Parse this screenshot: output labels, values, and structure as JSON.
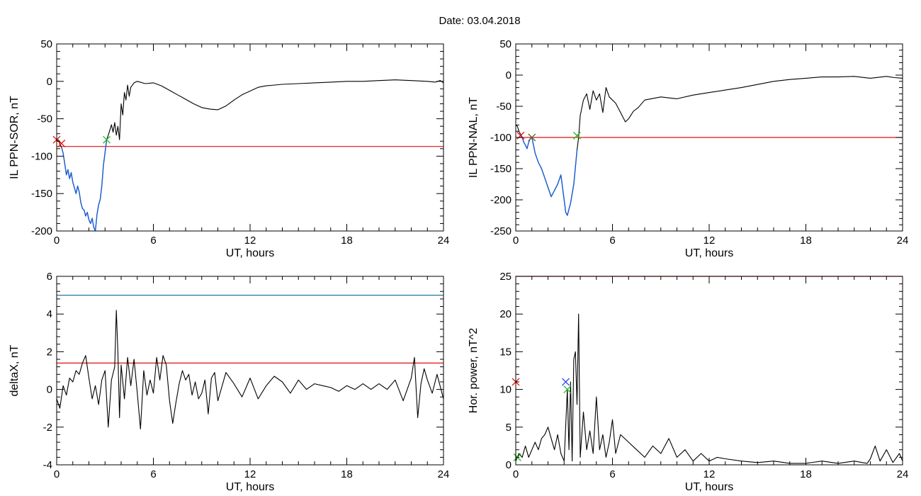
{
  "figure": {
    "title": "Date:  03.04.2018"
  },
  "colors": {
    "signal": "#000000",
    "threshold_red": "#e01010",
    "threshold_teal": "#1f7a9c",
    "segment_blue": "#1a5fd6",
    "marker_green": "#22bb22",
    "marker_red": "#e01010",
    "marker_blue": "#2040ff",
    "marker_olive": "#556b2f"
  },
  "chart_data": [
    {
      "id": "sor",
      "type": "line",
      "xlabel": "UT, hours",
      "ylabel": "IL PPN-SOR, nT",
      "xlim": [
        0,
        24
      ],
      "ylim": [
        -200,
        50
      ],
      "xticks": [
        0,
        6,
        12,
        18,
        24
      ],
      "yticks": [
        50,
        0,
        -50,
        -100,
        -150,
        -200
      ],
      "threshold": {
        "y": -87,
        "color": "red"
      },
      "highlight": {
        "x_start": 0.3,
        "x_end": 3.1,
        "color": "blue"
      },
      "markers": [
        {
          "x": 0.0,
          "y": -78,
          "color": "red"
        },
        {
          "x": 0.3,
          "y": -83,
          "color": "red"
        },
        {
          "x": 3.1,
          "y": -78,
          "color": "green"
        }
      ],
      "series": [
        {
          "x": [
            0,
            0.1,
            0.2,
            0.3,
            0.4,
            0.5,
            0.6,
            0.7,
            0.8,
            0.9,
            1.0,
            1.1,
            1.2,
            1.3,
            1.4,
            1.5,
            1.6,
            1.7,
            1.8,
            1.9,
            2.0,
            2.1,
            2.2,
            2.3,
            2.4,
            2.5,
            2.6,
            2.7,
            2.8,
            2.9,
            3.0,
            3.1,
            3.2,
            3.3,
            3.4,
            3.5,
            3.6,
            3.7,
            3.8,
            3.9,
            4.0,
            4.1,
            4.2,
            4.3,
            4.4,
            4.5,
            4.6,
            4.8,
            5.0,
            5.5,
            6.0,
            6.5,
            7.0,
            7.5,
            8.0,
            8.5,
            9.0,
            9.5,
            10.0,
            10.5,
            11.0,
            11.5,
            12.0,
            12.5,
            13.0,
            14.0,
            15.0,
            16.0,
            17.0,
            18.0,
            19.0,
            20.0,
            21.0,
            22.0,
            23.0,
            23.5,
            23.8,
            24.0
          ],
          "values": [
            -80,
            -78,
            -84,
            -88,
            -96,
            -110,
            -125,
            -118,
            -130,
            -122,
            -135,
            -142,
            -150,
            -140,
            -148,
            -162,
            -170,
            -172,
            -180,
            -175,
            -185,
            -190,
            -183,
            -195,
            -200,
            -178,
            -165,
            -158,
            -140,
            -112,
            -95,
            -78,
            -72,
            -65,
            -58,
            -68,
            -55,
            -72,
            -60,
            -78,
            -30,
            -45,
            -15,
            -25,
            -5,
            -20,
            -8,
            -2,
            0,
            -3,
            -2,
            -6,
            -12,
            -18,
            -24,
            -30,
            -35,
            -37,
            -38,
            -33,
            -25,
            -18,
            -13,
            -8,
            -6,
            -4,
            -3,
            -2,
            -1,
            0,
            0,
            1,
            2,
            1,
            0,
            -1,
            1,
            -2
          ]
        }
      ]
    },
    {
      "id": "nal",
      "type": "line",
      "xlabel": "UT, hours",
      "ylabel": "IL PPN-NAL, nT",
      "xlim": [
        0,
        24
      ],
      "ylim": [
        -250,
        50
      ],
      "xticks": [
        0,
        6,
        12,
        18,
        24
      ],
      "yticks": [
        50,
        0,
        -50,
        -100,
        -150,
        -200,
        -250
      ],
      "threshold": {
        "y": -100,
        "color": "red"
      },
      "highlight": {
        "x_start": 0.3,
        "x_end": 3.8,
        "color": "blue"
      },
      "markers": [
        {
          "x": 0.3,
          "y": -97,
          "color": "red"
        },
        {
          "x": 1.0,
          "y": -100,
          "color": "olive"
        },
        {
          "x": 3.8,
          "y": -97,
          "color": "green"
        }
      ],
      "series": [
        {
          "x": [
            0,
            0.1,
            0.2,
            0.3,
            0.4,
            0.5,
            0.6,
            0.7,
            0.8,
            0.9,
            1.0,
            1.2,
            1.4,
            1.6,
            1.8,
            2.0,
            2.2,
            2.4,
            2.6,
            2.8,
            3.0,
            3.1,
            3.2,
            3.4,
            3.6,
            3.8,
            3.9,
            4.0,
            4.2,
            4.4,
            4.6,
            4.8,
            5.0,
            5.2,
            5.4,
            5.6,
            5.8,
            6.0,
            6.2,
            6.5,
            6.8,
            7.0,
            7.3,
            7.6,
            8.0,
            9.0,
            10.0,
            11.0,
            12.0,
            13.0,
            14.0,
            15.0,
            16.0,
            17.0,
            18.0,
            19.0,
            20.0,
            21.0,
            22.0,
            23.0,
            23.5,
            24.0
          ],
          "values": [
            -80,
            -82,
            -90,
            -95,
            -100,
            -108,
            -112,
            -118,
            -108,
            -102,
            -100,
            -125,
            -140,
            -150,
            -165,
            -180,
            -195,
            -185,
            -175,
            -160,
            -200,
            -220,
            -225,
            -205,
            -175,
            -120,
            -100,
            -65,
            -40,
            -30,
            -55,
            -25,
            -40,
            -30,
            -60,
            -20,
            -35,
            -40,
            -45,
            -60,
            -75,
            -70,
            -58,
            -52,
            -40,
            -35,
            -38,
            -32,
            -28,
            -24,
            -20,
            -15,
            -10,
            -7,
            -5,
            -3,
            -3,
            -2,
            -5,
            -2,
            -4,
            -5
          ]
        }
      ]
    },
    {
      "id": "deltax",
      "type": "line",
      "xlabel": "UT, hours",
      "ylabel": "deltaX, nT",
      "xlim": [
        0,
        24
      ],
      "ylim": [
        -4,
        6
      ],
      "xticks": [
        0,
        6,
        12,
        18,
        24
      ],
      "yticks": [
        6,
        4,
        2,
        0,
        -2,
        -4
      ],
      "thresholds": [
        {
          "y": 5.0,
          "color": "teal"
        },
        {
          "y": 1.4,
          "color": "red"
        }
      ],
      "markers": [],
      "series": [
        {
          "x": [
            0,
            0.2,
            0.4,
            0.6,
            0.8,
            1.0,
            1.2,
            1.4,
            1.6,
            1.8,
            2.0,
            2.2,
            2.4,
            2.6,
            2.8,
            3.0,
            3.2,
            3.4,
            3.6,
            3.7,
            3.8,
            3.9,
            4.0,
            4.2,
            4.4,
            4.6,
            4.8,
            5.0,
            5.2,
            5.4,
            5.6,
            5.8,
            6.0,
            6.2,
            6.4,
            6.6,
            6.8,
            7.0,
            7.2,
            7.4,
            7.6,
            7.8,
            8.0,
            8.2,
            8.4,
            8.6,
            8.8,
            9.0,
            9.2,
            9.4,
            9.6,
            9.8,
            10.0,
            10.5,
            11.0,
            11.5,
            12.0,
            12.5,
            13.0,
            13.5,
            14.0,
            14.5,
            15.0,
            15.5,
            16.0,
            16.5,
            17.0,
            17.5,
            18.0,
            18.5,
            19.0,
            19.5,
            20.0,
            20.5,
            21.0,
            21.5,
            22.0,
            22.2,
            22.4,
            22.6,
            22.8,
            23.0,
            23.3,
            23.6,
            24.0
          ],
          "values": [
            -0.5,
            -1.0,
            0.2,
            -0.3,
            0.6,
            0.4,
            1.0,
            0.8,
            1.4,
            1.8,
            0.6,
            -0.5,
            0.2,
            -0.8,
            0.5,
            1.0,
            -2.0,
            0.5,
            1.2,
            4.2,
            2.0,
            -1.5,
            1.3,
            -0.5,
            1.7,
            0.2,
            1.6,
            -0.2,
            -2.1,
            1.0,
            -0.3,
            0.5,
            -0.2,
            1.7,
            0.5,
            1.8,
            1.3,
            -0.6,
            -1.8,
            -0.7,
            0.3,
            1.0,
            0.5,
            0.8,
            -0.3,
            0.4,
            -0.5,
            -0.2,
            0.5,
            -1.3,
            0.6,
            0.9,
            -0.6,
            0.9,
            0.3,
            -0.4,
            0.6,
            -0.5,
            0.2,
            0.7,
            0.4,
            -0.2,
            0.5,
            0.0,
            0.3,
            0.2,
            0.1,
            -0.1,
            0.2,
            0.0,
            0.3,
            0.0,
            0.3,
            0.0,
            0.5,
            -0.6,
            0.6,
            1.7,
            -1.5,
            0.3,
            1.1,
            0.5,
            -0.2,
            0.8,
            -0.5
          ]
        }
      ]
    },
    {
      "id": "power",
      "type": "line",
      "xlabel": "UT, hours",
      "ylabel": "Hor. power, nT^2",
      "xlim": [
        0,
        24
      ],
      "ylim": [
        0,
        25
      ],
      "xticks": [
        0,
        6,
        12,
        18,
        24
      ],
      "yticks": [
        25,
        20,
        15,
        10,
        5,
        0
      ],
      "threshold": {
        "y": 25,
        "color": "red"
      },
      "markers": [
        {
          "x": 0.0,
          "y": 11.0,
          "color": "red"
        },
        {
          "x": 0.1,
          "y": 1.0,
          "color": "green"
        },
        {
          "x": 3.1,
          "y": 11.0,
          "color": "blue"
        },
        {
          "x": 3.2,
          "y": 10.0,
          "color": "green"
        }
      ],
      "series": [
        {
          "x": [
            0,
            0.2,
            0.4,
            0.6,
            0.8,
            1.0,
            1.2,
            1.4,
            1.6,
            1.8,
            2.0,
            2.2,
            2.4,
            2.6,
            2.8,
            3.0,
            3.2,
            3.3,
            3.4,
            3.5,
            3.6,
            3.7,
            3.8,
            3.9,
            4.0,
            4.2,
            4.4,
            4.6,
            4.8,
            5.0,
            5.2,
            5.4,
            5.6,
            5.8,
            6.0,
            6.2,
            6.5,
            7.0,
            7.5,
            8.0,
            8.5,
            9.0,
            9.5,
            10.0,
            10.5,
            11.0,
            11.5,
            12.0,
            12.5,
            13.0,
            14.0,
            15.0,
            16.0,
            17.0,
            18.0,
            19.0,
            20.0,
            21.0,
            21.5,
            21.8,
            22.0,
            22.3,
            22.6,
            23.0,
            23.4,
            23.8,
            24.0
          ],
          "values": [
            0.5,
            1.5,
            1.0,
            2.5,
            1.0,
            2.0,
            3.0,
            2.0,
            3.5,
            4.0,
            5.0,
            3.5,
            2.0,
            4.0,
            1.5,
            0.5,
            10.0,
            2.0,
            11.0,
            0.5,
            14.0,
            15.0,
            8.0,
            20.0,
            1.0,
            7.0,
            2.0,
            4.5,
            1.5,
            9.0,
            2.0,
            4.0,
            1.0,
            3.0,
            6.0,
            1.5,
            4.0,
            3.0,
            2.0,
            1.0,
            2.5,
            1.5,
            3.5,
            1.0,
            2.0,
            0.5,
            1.5,
            0.5,
            1.0,
            0.8,
            0.5,
            0.3,
            0.5,
            0.2,
            0.2,
            0.5,
            0.2,
            0.5,
            0.3,
            0.2,
            0.8,
            2.5,
            0.5,
            2.0,
            0.3,
            1.5,
            0.5
          ]
        }
      ]
    }
  ]
}
